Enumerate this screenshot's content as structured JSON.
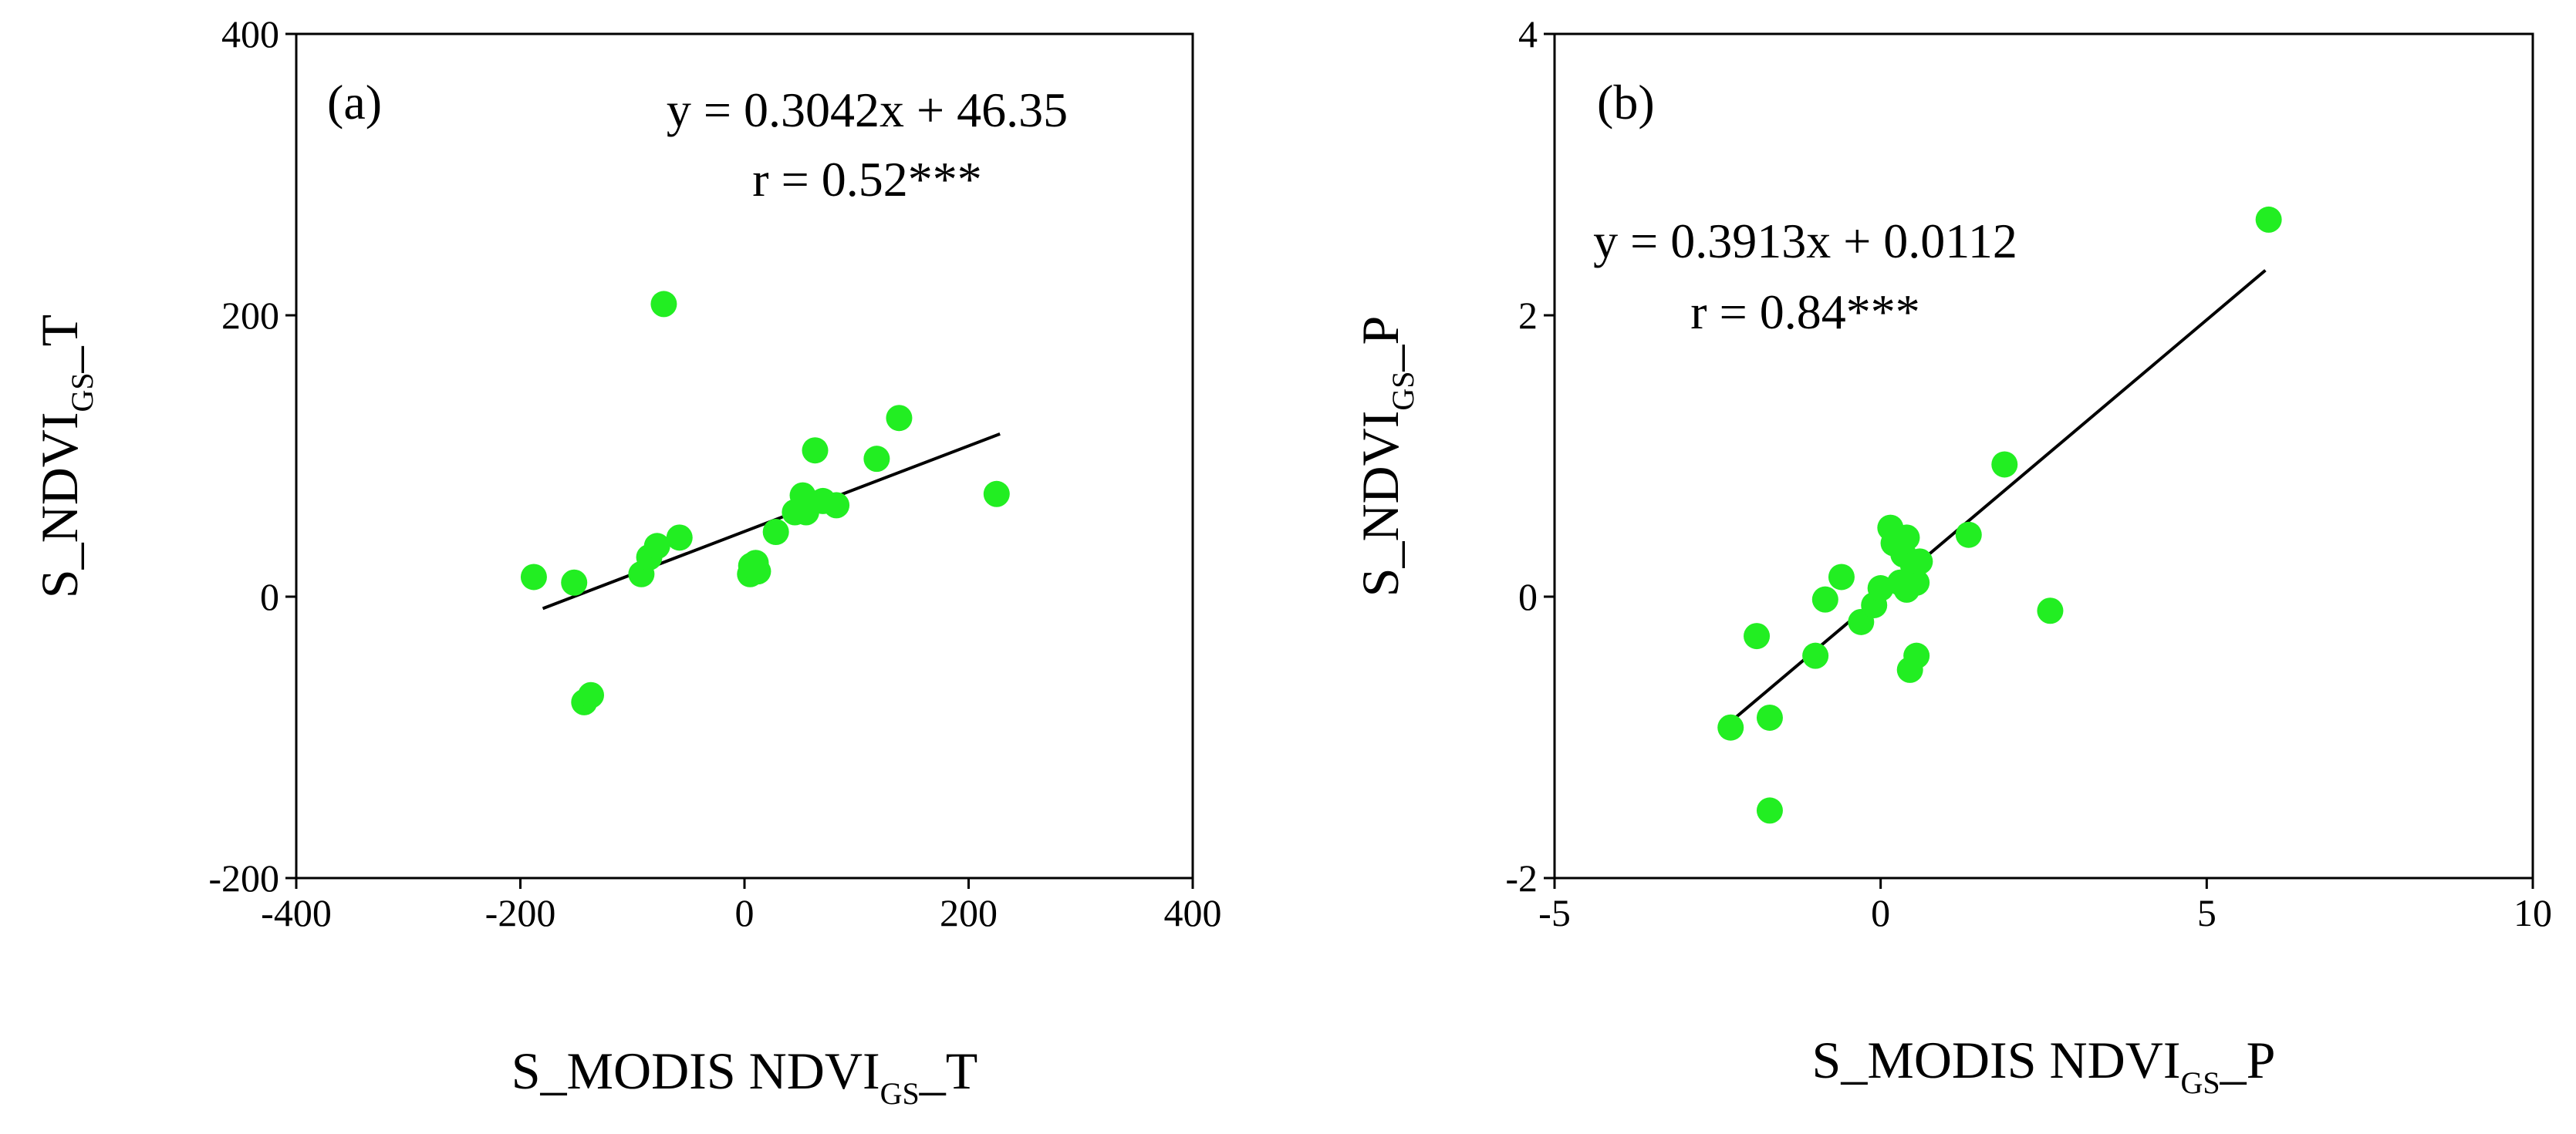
{
  "chart_data": [
    {
      "type": "scatter",
      "panel_label": "(a)",
      "xlabel": {
        "main": "S_MODIS NDVI",
        "sub": "GS",
        "suffix": "_T"
      },
      "ylabel": {
        "main": "S_NDVI",
        "sub": "GS",
        "suffix": "_T"
      },
      "xlim": [
        -400,
        400
      ],
      "ylim": [
        -200,
        400
      ],
      "xticks": [
        -400,
        -200,
        0,
        200,
        400
      ],
      "yticks": [
        -200,
        0,
        200,
        400
      ],
      "xtick_labels": [
        "-400",
        "-200",
        "0",
        "200",
        "400"
      ],
      "ytick_labels": [
        "-200",
        "0",
        "200",
        "400"
      ],
      "equation": "y = 0.3042x  + 46.35",
      "r_text": "r = 0.52***",
      "fit": {
        "slope": 0.3042,
        "intercept": 46.35,
        "x_range": [
          -180,
          228
        ]
      },
      "marker_color": "#22ee22",
      "points": [
        [
          -188,
          14
        ],
        [
          -152,
          10
        ],
        [
          -143,
          -75
        ],
        [
          -137,
          -70
        ],
        [
          -72,
          208
        ],
        [
          -92,
          16
        ],
        [
          -85,
          28
        ],
        [
          -78,
          36
        ],
        [
          -58,
          42
        ],
        [
          5,
          16
        ],
        [
          6,
          22
        ],
        [
          10,
          24
        ],
        [
          12,
          18
        ],
        [
          28,
          46
        ],
        [
          45,
          60
        ],
        [
          52,
          72
        ],
        [
          55,
          60
        ],
        [
          63,
          104
        ],
        [
          70,
          68
        ],
        [
          82,
          65
        ],
        [
          118,
          98
        ],
        [
          138,
          127
        ],
        [
          225,
          73
        ]
      ]
    },
    {
      "type": "scatter",
      "panel_label": "(b)",
      "xlabel": {
        "main": "S_MODIS NDVI",
        "sub": "GS",
        "suffix": "_P"
      },
      "ylabel": {
        "main": "S_NDVI",
        "sub": "GS",
        "suffix": "_P"
      },
      "xlim": [
        -5,
        10
      ],
      "ylim": [
        -2,
        4
      ],
      "xticks": [
        -5,
        0,
        5,
        10
      ],
      "yticks": [
        -2,
        0,
        2,
        4
      ],
      "xtick_labels": [
        "-5",
        "0",
        "5",
        "10"
      ],
      "ytick_labels": [
        "-2",
        "0",
        "2",
        "4"
      ],
      "equation": "y = 0.3913x  + 0.0112",
      "r_text": "r = 0.84***",
      "fit": {
        "slope": 0.3913,
        "intercept": 0.0112,
        "x_range": [
          -2.3,
          5.9
        ]
      },
      "marker_color": "#22ee22",
      "points": [
        [
          -2.3,
          -0.93
        ],
        [
          -1.9,
          -0.28
        ],
        [
          -1.7,
          -0.86
        ],
        [
          -1.7,
          -1.52
        ],
        [
          -1.0,
          -0.42
        ],
        [
          -0.85,
          -0.02
        ],
        [
          -0.6,
          0.14
        ],
        [
          -0.3,
          -0.18
        ],
        [
          -0.1,
          -0.06
        ],
        [
          0.0,
          0.06
        ],
        [
          0.15,
          0.49
        ],
        [
          0.2,
          0.38
        ],
        [
          0.3,
          0.1
        ],
        [
          0.35,
          0.3
        ],
        [
          0.4,
          0.42
        ],
        [
          0.4,
          0.05
        ],
        [
          0.45,
          -0.52
        ],
        [
          0.5,
          0.22
        ],
        [
          0.55,
          0.1
        ],
        [
          0.6,
          0.25
        ],
        [
          0.55,
          -0.42
        ],
        [
          1.35,
          0.44
        ],
        [
          1.9,
          0.94
        ],
        [
          2.6,
          -0.1
        ],
        [
          5.95,
          2.68
        ]
      ]
    }
  ]
}
